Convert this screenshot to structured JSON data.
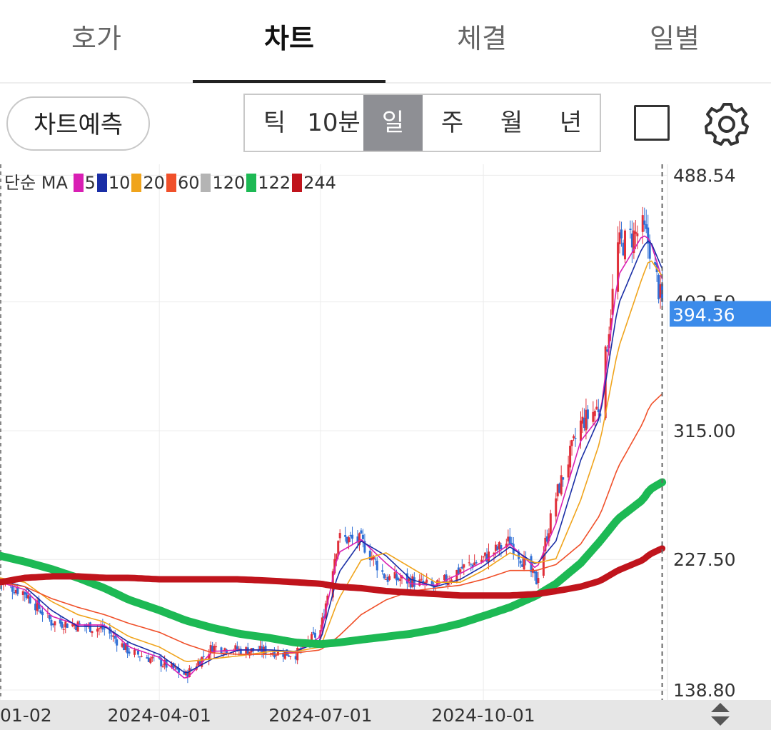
{
  "tabs": [
    {
      "label": "호가"
    },
    {
      "label": "차트"
    },
    {
      "label": "체결"
    },
    {
      "label": "일별"
    }
  ],
  "toolbar": {
    "predict_label": "차트예측",
    "periods": [
      "틱",
      "10분",
      "일",
      "주",
      "월",
      "년"
    ],
    "selected_period": "일"
  },
  "legend": {
    "prefix": "단순 MA",
    "items": [
      {
        "label": "5",
        "color": "#d91fb4"
      },
      {
        "label": "10",
        "color": "#1a2ea6"
      },
      {
        "label": "20",
        "color": "#f0a41c"
      },
      {
        "label": "60",
        "color": "#f0502a"
      },
      {
        "label": "120",
        "color": "#b4b4b4"
      },
      {
        "label": "122",
        "color": "#1db954"
      },
      {
        "label": "244",
        "color": "#c0141c"
      }
    ]
  },
  "current_price": "394.36",
  "chart_data": {
    "type": "candlestick",
    "y_ticks": [
      "488.54",
      "402.50",
      "315.00",
      "227.50",
      "138.80"
    ],
    "y_tick_values": [
      488.54,
      402.5,
      315.0,
      227.5,
      138.8
    ],
    "x_ticks": [
      "01-02",
      "2024-04-01",
      "2024-07-01",
      "2024-10-01"
    ],
    "x_tick_dates": [
      "2024-01-02",
      "2024-04-01",
      "2024-07-01",
      "2024-10-01"
    ],
    "ylim": [
      132,
      496
    ],
    "xlim": [
      "2024-01-02",
      "2025-01-13"
    ],
    "price_marker": 394.36,
    "crosshair_date": "2025-01-10",
    "close_series": {
      "dates": [
        "2024-01-02",
        "2024-01-16",
        "2024-01-31",
        "2024-02-15",
        "2024-03-01",
        "2024-03-15",
        "2024-04-01",
        "2024-04-16",
        "2024-05-01",
        "2024-05-16",
        "2024-06-03",
        "2024-06-17",
        "2024-07-01",
        "2024-07-11",
        "2024-07-24",
        "2024-08-07",
        "2024-08-21",
        "2024-09-04",
        "2024-09-18",
        "2024-10-01",
        "2024-10-16",
        "2024-10-31",
        "2024-11-11",
        "2024-11-25",
        "2024-12-06",
        "2024-12-16",
        "2024-12-30",
        "2025-01-03",
        "2025-01-10"
      ],
      "values": [
        212,
        205,
        185,
        183,
        180,
        165,
        158,
        149,
        168,
        166,
        165,
        163,
        179,
        242,
        240,
        215,
        213,
        208,
        221,
        228,
        240,
        213,
        270,
        320,
        332,
        440,
        452,
        440,
        400
      ]
    },
    "ma": [
      {
        "period": 5,
        "values": [
          212,
          207,
          189,
          183,
          183,
          168,
          161,
          146,
          165,
          166,
          166,
          164,
          175,
          232,
          241,
          225,
          211,
          210,
          218,
          226,
          238,
          221,
          252,
          308,
          325,
          420,
          448,
          445,
          418
        ]
      },
      {
        "period": 10,
        "values": [
          213,
          209,
          193,
          182,
          182,
          171,
          163,
          150,
          160,
          166,
          166,
          165,
          172,
          218,
          240,
          230,
          214,
          209,
          214,
          223,
          236,
          224,
          240,
          295,
          325,
          400,
          440,
          445,
          425
        ]
      },
      {
        "period": 20,
        "values": [
          215,
          212,
          199,
          190,
          185,
          175,
          168,
          158,
          160,
          162,
          165,
          165,
          168,
          200,
          227,
          232,
          222,
          212,
          212,
          220,
          232,
          225,
          228,
          268,
          308,
          370,
          420,
          432,
          420
        ]
      },
      {
        "period": 60,
        "values": [
          212,
          209,
          201,
          195,
          190,
          184,
          178,
          170,
          164,
          163,
          163,
          164,
          166,
          175,
          190,
          200,
          206,
          208,
          210,
          214,
          220,
          220,
          224,
          238,
          258,
          290,
          320,
          332,
          340
        ]
      },
      {
        "period": 122,
        "values": [
          230,
          226,
          221,
          215,
          208,
          200,
          193,
          186,
          181,
          177,
          174,
          171,
          170,
          171,
          173,
          175,
          177,
          180,
          184,
          189,
          195,
          203,
          211,
          225,
          240,
          255,
          268,
          275,
          280
        ]
      },
      {
        "period": 244,
        "values": [
          212,
          215,
          216,
          216,
          215,
          215,
          214,
          214,
          214,
          214,
          213,
          212,
          211,
          209,
          208,
          206,
          205,
          204,
          203,
          203,
          203,
          204,
          206,
          209,
          213,
          220,
          227,
          231,
          235
        ]
      }
    ]
  }
}
